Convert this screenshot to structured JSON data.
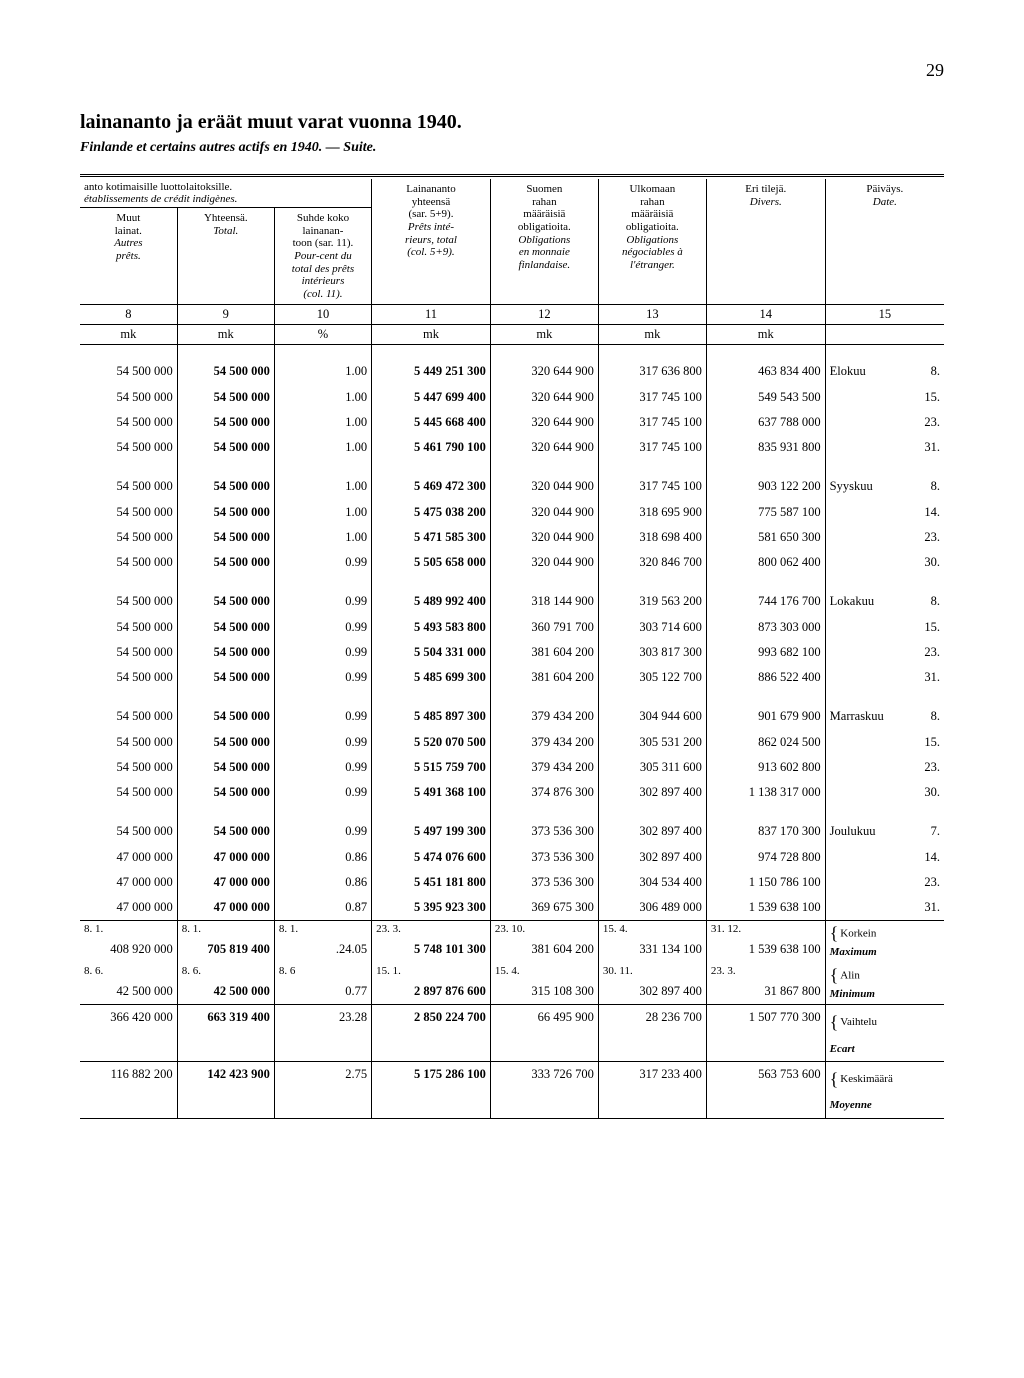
{
  "page_number": "29",
  "title": "lainananto ja eräät muut varat vuonna 1940.",
  "subtitle": "Finlande et certains autres actifs en 1940. — Suite.",
  "header_note_fi": "anto kotimaisille luottolaitoksille.",
  "header_note_fr": "établissements de crédit indigènes.",
  "cols": {
    "c8": {
      "fi": "Muut\nlainat.",
      "fr": "Autres\nprêts."
    },
    "c9": {
      "fi": "Yhteensä.",
      "fr": "Total."
    },
    "c10": {
      "fi": "Suhde koko\nlainanan-\ntoon (sar. 11).",
      "fr": "Pour-cent du\ntotal des prêts\nintérieurs\n(col. 11)."
    },
    "c11": {
      "fi": "Lainananto\nyhteensä\n(sar. 5+9).",
      "fr": "Prêts inté-\nrieurs, total\n(col. 5+9)."
    },
    "c12": {
      "fi": "Suomen\nrahan\nmääräisiä\nobligatioita.",
      "fr": "Obligations\nen monnaie\nfinlandaise."
    },
    "c13": {
      "fi": "Ulkomaan\nrahan\nmääräisiä\nobligatioita.",
      "fr": "Obligations\nnégociables à\nl'étranger."
    },
    "c14": {
      "fi": "Eri tilejä.",
      "fr": "Divers."
    },
    "c15": {
      "fi": "Päiväys.",
      "fr": "Date."
    }
  },
  "colnums": [
    "8",
    "9",
    "10",
    "11",
    "12",
    "13",
    "14",
    "15"
  ],
  "units": [
    "mk",
    "mk",
    "%",
    "mk",
    "mk",
    "mk",
    "mk",
    ""
  ],
  "months": [
    {
      "name": "Elokuu",
      "rows": [
        {
          "c8": "54 500 000",
          "c9": "54 500 000",
          "c10": "1.00",
          "c11": "5 449 251 300",
          "c12": "320 644 900",
          "c13": "317 636 800",
          "c14": "463 834 400",
          "d": "8."
        },
        {
          "c8": "54 500 000",
          "c9": "54 500 000",
          "c10": "1.00",
          "c11": "5 447 699 400",
          "c12": "320 644 900",
          "c13": "317 745 100",
          "c14": "549 543 500",
          "d": "15."
        },
        {
          "c8": "54 500 000",
          "c9": "54 500 000",
          "c10": "1.00",
          "c11": "5 445 668 400",
          "c12": "320 644 900",
          "c13": "317 745 100",
          "c14": "637 788 000",
          "d": "23."
        },
        {
          "c8": "54 500 000",
          "c9": "54 500 000",
          "c10": "1.00",
          "c11": "5 461 790 100",
          "c12": "320 644 900",
          "c13": "317 745 100",
          "c14": "835 931 800",
          "d": "31."
        }
      ]
    },
    {
      "name": "Syyskuu",
      "rows": [
        {
          "c8": "54 500 000",
          "c9": "54 500 000",
          "c10": "1.00",
          "c11": "5 469 472 300",
          "c12": "320 044 900",
          "c13": "317 745 100",
          "c14": "903 122 200",
          "d": "8."
        },
        {
          "c8": "54 500 000",
          "c9": "54 500 000",
          "c10": "1.00",
          "c11": "5 475 038 200",
          "c12": "320 044 900",
          "c13": "318 695 900",
          "c14": "775 587 100",
          "d": "14."
        },
        {
          "c8": "54 500 000",
          "c9": "54 500 000",
          "c10": "1.00",
          "c11": "5 471 585 300",
          "c12": "320 044 900",
          "c13": "318 698 400",
          "c14": "581 650 300",
          "d": "23."
        },
        {
          "c8": "54 500 000",
          "c9": "54 500 000",
          "c10": "0.99",
          "c11": "5 505 658 000",
          "c12": "320 044 900",
          "c13": "320 846 700",
          "c14": "800 062 400",
          "d": "30."
        }
      ]
    },
    {
      "name": "Lokakuu",
      "rows": [
        {
          "c8": "54 500 000",
          "c9": "54 500 000",
          "c10": "0.99",
          "c11": "5 489 992 400",
          "c12": "318 144 900",
          "c13": "319 563 200",
          "c14": "744 176 700",
          "d": "8."
        },
        {
          "c8": "54 500 000",
          "c9": "54 500 000",
          "c10": "0.99",
          "c11": "5 493 583 800",
          "c12": "360 791 700",
          "c13": "303 714 600",
          "c14": "873 303 000",
          "d": "15."
        },
        {
          "c8": "54 500 000",
          "c9": "54 500 000",
          "c10": "0.99",
          "c11": "5 504 331 000",
          "c12": "381 604 200",
          "c13": "303 817 300",
          "c14": "993 682 100",
          "d": "23."
        },
        {
          "c8": "54 500 000",
          "c9": "54 500 000",
          "c10": "0.99",
          "c11": "5 485 699 300",
          "c12": "381 604 200",
          "c13": "305 122 700",
          "c14": "886 522 400",
          "d": "31."
        }
      ]
    },
    {
      "name": "Marraskuu",
      "rows": [
        {
          "c8": "54 500 000",
          "c9": "54 500 000",
          "c10": "0.99",
          "c11": "5 485 897 300",
          "c12": "379 434 200",
          "c13": "304 944 600",
          "c14": "901 679 900",
          "d": "8."
        },
        {
          "c8": "54 500 000",
          "c9": "54 500 000",
          "c10": "0.99",
          "c11": "5 520 070 500",
          "c12": "379 434 200",
          "c13": "305 531 200",
          "c14": "862 024 500",
          "d": "15."
        },
        {
          "c8": "54 500 000",
          "c9": "54 500 000",
          "c10": "0.99",
          "c11": "5 515 759 700",
          "c12": "379 434 200",
          "c13": "305 311 600",
          "c14": "913 602 800",
          "d": "23."
        },
        {
          "c8": "54 500 000",
          "c9": "54 500 000",
          "c10": "0.99",
          "c11": "5 491 368 100",
          "c12": "374 876 300",
          "c13": "302 897 400",
          "c14": "1 138 317 000",
          "d": "30."
        }
      ]
    },
    {
      "name": "Joulukuu",
      "rows": [
        {
          "c8": "54 500 000",
          "c9": "54 500 000",
          "c10": "0.99",
          "c11": "5 497 199 300",
          "c12": "373 536 300",
          "c13": "302 897 400",
          "c14": "837 170 300",
          "d": "7."
        },
        {
          "c8": "47 000 000",
          "c9": "47 000 000",
          "c10": "0.86",
          "c11": "5 474 076 600",
          "c12": "373 536 300",
          "c13": "302 897 400",
          "c14": "974 728 800",
          "d": "14."
        },
        {
          "c8": "47 000 000",
          "c9": "47 000 000",
          "c10": "0.86",
          "c11": "5 451 181 800",
          "c12": "373 536 300",
          "c13": "304 534 400",
          "c14": "1 150 786 100",
          "d": "23."
        },
        {
          "c8": "47 000 000",
          "c9": "47 000 000",
          "c10": "0.87",
          "c11": "5 395 923 300",
          "c12": "369 675 300",
          "c13": "306 489 000",
          "c14": "1 539 638 100",
          "d": "31."
        }
      ]
    }
  ],
  "footer": {
    "max": {
      "date8": "8. 1.",
      "date9": "8. 1.",
      "date10": "8.  1.",
      "date11": "23. 3.",
      "date12": "23. 10.",
      "date13": "15.  4.",
      "date14": "31. 12.",
      "v8": "408 920 000",
      "v9": "705 819 400",
      "v10": ".24.05",
      "v11": "5 748 101 300",
      "v12": "381 604 200",
      "v13": "331 134 100",
      "v14": "1 539 638 100",
      "label_fi": "Korkein",
      "label_fr": "Maximum"
    },
    "min": {
      "date8": "8. 6.",
      "date9": "8. 6.",
      "date10": "8.  6",
      "date11": "15. 1.",
      "date12": "15.  4.",
      "date13": "30. 11.",
      "date14": "23.  3.",
      "v8": "42 500 000",
      "v9": "42 500 000",
      "v10": "0.77",
      "v11": "2 897 876 600",
      "v12": "315 108 300",
      "v13": "302 897 400",
      "v14": "31 867 800",
      "label_fi": "Alin",
      "label_fr": "Minimum"
    },
    "ecart": {
      "v8": "366 420 000",
      "v9": "663 319 400",
      "v10": "23.28",
      "v11": "2 850 224 700",
      "v12": "66 495 900",
      "v13": "28 236 700",
      "v14": "1 507 770 300",
      "label_fi": "Vaihtelu",
      "label_fr": "Ecart"
    },
    "mean": {
      "v8": "116 882 200",
      "v9": "142 423 900",
      "v10": "2.75",
      "v11": "5 175 286 100",
      "v12": "333 726 700",
      "v13": "317 233 400",
      "v14": "563 753 600",
      "label_fi": "Keskimäärä",
      "label_fr": "Moyenne"
    }
  }
}
